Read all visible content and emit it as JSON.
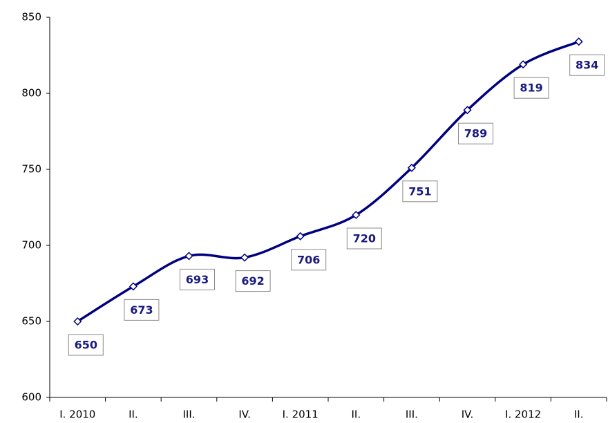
{
  "chart_data": {
    "type": "line",
    "categories": [
      "I. 2010",
      "II.",
      "III.",
      "IV.",
      "I. 2011",
      "II.",
      "III.",
      "IV.",
      "I. 2012",
      "II."
    ],
    "values": [
      650,
      673,
      693,
      692,
      706,
      720,
      751,
      789,
      819,
      834
    ],
    "color": "#000080",
    "ylim": [
      600,
      850
    ],
    "yticks": [
      600,
      650,
      700,
      750,
      800,
      850
    ],
    "grid": false
  }
}
